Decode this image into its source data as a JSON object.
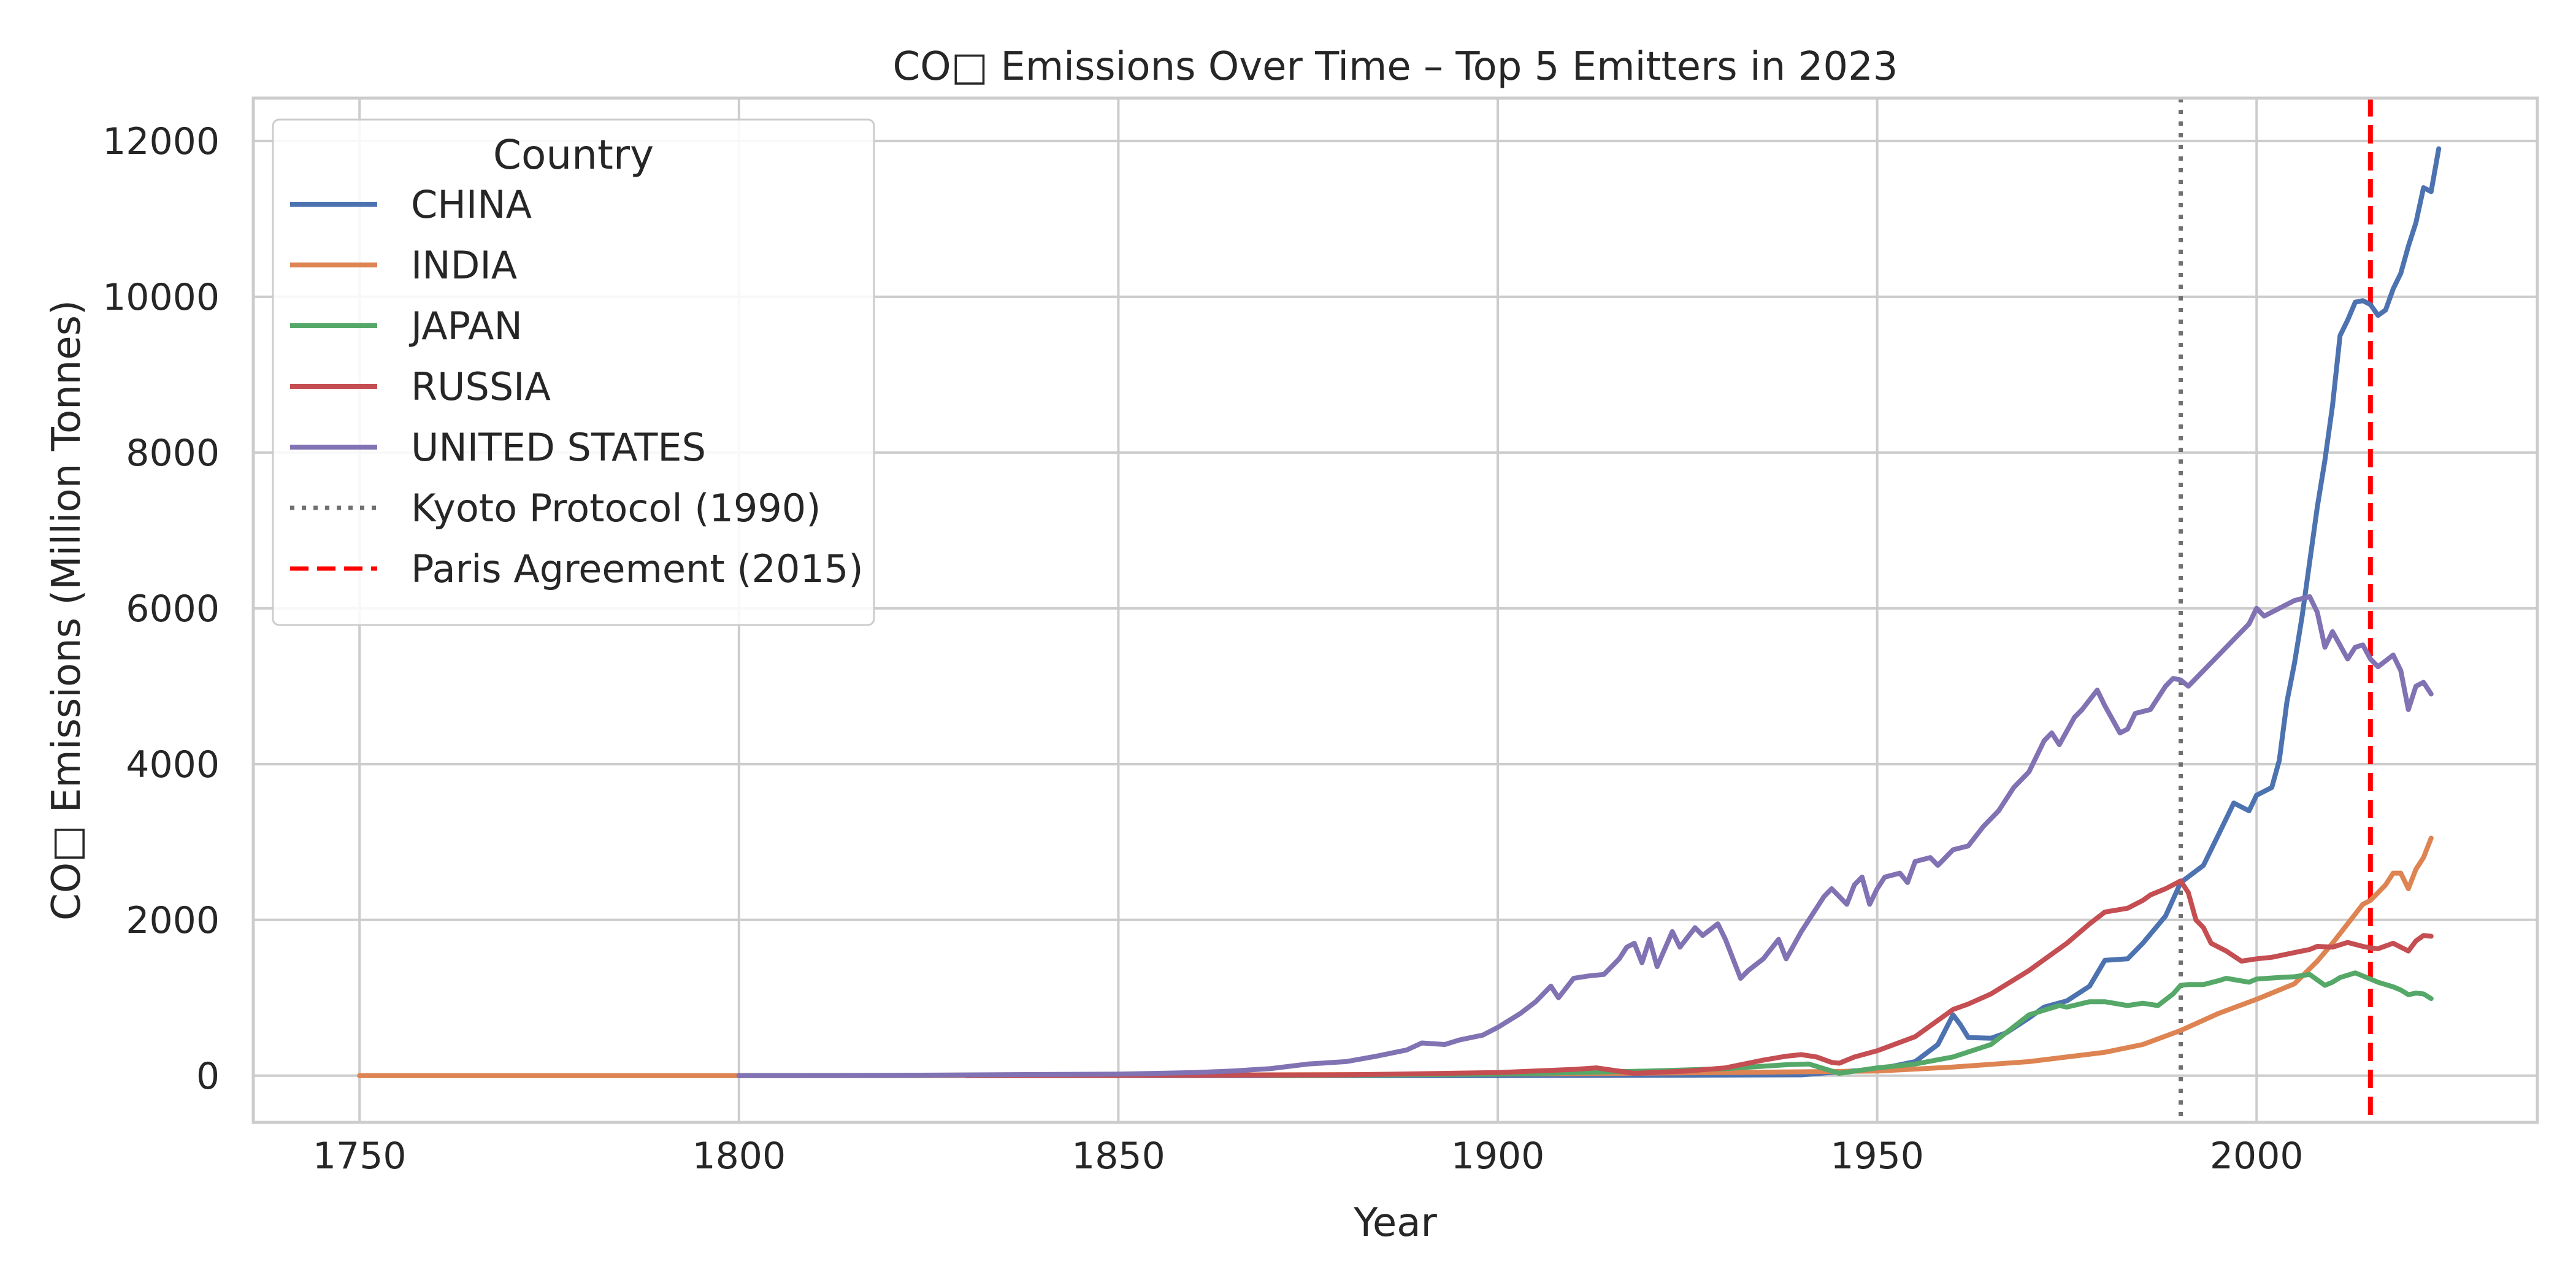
{
  "chart_data": {
    "type": "line",
    "title": "CO□ Emissions Over Time – Top 5 Emitters in 2023",
    "xlabel": "Year",
    "ylabel": "CO□ Emissions (Million Tonnes)",
    "xlim": [
      1736,
      2037
    ],
    "ylim": [
      -600,
      12550
    ],
    "x_ticks": [
      1750,
      1800,
      1850,
      1900,
      1950,
      2000
    ],
    "y_ticks": [
      0,
      2000,
      4000,
      6000,
      8000,
      10000,
      12000
    ],
    "grid": true,
    "legend": {
      "title": "Country",
      "position": "top-left"
    },
    "series": [
      {
        "name": "CHINA",
        "color": "#4c72b0",
        "points": [
          [
            1800,
            0
          ],
          [
            1900,
            0
          ],
          [
            1940,
            10
          ],
          [
            1945,
            50
          ],
          [
            1950,
            80
          ],
          [
            1955,
            180
          ],
          [
            1958,
            400
          ],
          [
            1960,
            780
          ],
          [
            1961,
            650
          ],
          [
            1962,
            490
          ],
          [
            1965,
            480
          ],
          [
            1967,
            550
          ],
          [
            1970,
            740
          ],
          [
            1972,
            880
          ],
          [
            1975,
            960
          ],
          [
            1978,
            1150
          ],
          [
            1980,
            1480
          ],
          [
            1983,
            1500
          ],
          [
            1985,
            1700
          ],
          [
            1988,
            2050
          ],
          [
            1990,
            2480
          ],
          [
            1993,
            2700
          ],
          [
            1995,
            3100
          ],
          [
            1997,
            3500
          ],
          [
            1999,
            3400
          ],
          [
            2000,
            3600
          ],
          [
            2002,
            3700
          ],
          [
            2003,
            4050
          ],
          [
            2004,
            4800
          ],
          [
            2005,
            5300
          ],
          [
            2006,
            5900
          ],
          [
            2008,
            7300
          ],
          [
            2009,
            7900
          ],
          [
            2010,
            8600
          ],
          [
            2011,
            9500
          ],
          [
            2012,
            9700
          ],
          [
            2013,
            9930
          ],
          [
            2014,
            9950
          ],
          [
            2015,
            9900
          ],
          [
            2016,
            9760
          ],
          [
            2017,
            9830
          ],
          [
            2018,
            10100
          ],
          [
            2019,
            10300
          ],
          [
            2020,
            10650
          ],
          [
            2021,
            10950
          ],
          [
            2022,
            11400
          ],
          [
            2023,
            11350
          ],
          [
            2024,
            11900
          ]
        ]
      },
      {
        "name": "INDIA",
        "color": "#dd8452",
        "points": [
          [
            1750,
            0
          ],
          [
            1800,
            0
          ],
          [
            1850,
            5
          ],
          [
            1900,
            20
          ],
          [
            1930,
            40
          ],
          [
            1950,
            60
          ],
          [
            1960,
            110
          ],
          [
            1970,
            180
          ],
          [
            1980,
            300
          ],
          [
            1985,
            400
          ],
          [
            1990,
            580
          ],
          [
            1995,
            800
          ],
          [
            2000,
            980
          ],
          [
            2005,
            1180
          ],
          [
            2008,
            1470
          ],
          [
            2010,
            1700
          ],
          [
            2012,
            1950
          ],
          [
            2014,
            2200
          ],
          [
            2015,
            2250
          ],
          [
            2016,
            2350
          ],
          [
            2017,
            2450
          ],
          [
            2018,
            2600
          ],
          [
            2019,
            2600
          ],
          [
            2020,
            2400
          ],
          [
            2021,
            2650
          ],
          [
            2022,
            2800
          ],
          [
            2023,
            3050
          ]
        ]
      },
      {
        "name": "JAPAN",
        "color": "#55a868",
        "points": [
          [
            1870,
            0
          ],
          [
            1900,
            20
          ],
          [
            1920,
            60
          ],
          [
            1930,
            90
          ],
          [
            1938,
            140
          ],
          [
            1941,
            150
          ],
          [
            1945,
            30
          ],
          [
            1950,
            100
          ],
          [
            1955,
            150
          ],
          [
            1960,
            240
          ],
          [
            1965,
            400
          ],
          [
            1970,
            780
          ],
          [
            1972,
            840
          ],
          [
            1974,
            900
          ],
          [
            1975,
            880
          ],
          [
            1978,
            950
          ],
          [
            1980,
            950
          ],
          [
            1983,
            900
          ],
          [
            1985,
            930
          ],
          [
            1987,
            900
          ],
          [
            1989,
            1050
          ],
          [
            1990,
            1160
          ],
          [
            1991,
            1170
          ],
          [
            1993,
            1170
          ],
          [
            1995,
            1220
          ],
          [
            1996,
            1250
          ],
          [
            1999,
            1200
          ],
          [
            2000,
            1240
          ],
          [
            2003,
            1260
          ],
          [
            2005,
            1270
          ],
          [
            2007,
            1300
          ],
          [
            2009,
            1160
          ],
          [
            2010,
            1200
          ],
          [
            2011,
            1260
          ],
          [
            2013,
            1320
          ],
          [
            2014,
            1280
          ],
          [
            2016,
            1200
          ],
          [
            2018,
            1140
          ],
          [
            2019,
            1100
          ],
          [
            2020,
            1040
          ],
          [
            2021,
            1060
          ],
          [
            2022,
            1050
          ],
          [
            2023,
            990
          ]
        ]
      },
      {
        "name": "RUSSIA",
        "color": "#c44e52",
        "points": [
          [
            1830,
            0
          ],
          [
            1880,
            10
          ],
          [
            1900,
            40
          ],
          [
            1910,
            80
          ],
          [
            1913,
            100
          ],
          [
            1918,
            30
          ],
          [
            1925,
            60
          ],
          [
            1930,
            100
          ],
          [
            1935,
            200
          ],
          [
            1938,
            250
          ],
          [
            1940,
            270
          ],
          [
            1942,
            240
          ],
          [
            1944,
            170
          ],
          [
            1945,
            160
          ],
          [
            1947,
            240
          ],
          [
            1950,
            320
          ],
          [
            1955,
            500
          ],
          [
            1960,
            850
          ],
          [
            1962,
            920
          ],
          [
            1965,
            1050
          ],
          [
            1970,
            1350
          ],
          [
            1975,
            1700
          ],
          [
            1978,
            1950
          ],
          [
            1980,
            2100
          ],
          [
            1983,
            2150
          ],
          [
            1985,
            2250
          ],
          [
            1986,
            2320
          ],
          [
            1988,
            2400
          ],
          [
            1989,
            2450
          ],
          [
            1990,
            2500
          ],
          [
            1991,
            2350
          ],
          [
            1992,
            2000
          ],
          [
            1993,
            1900
          ],
          [
            1994,
            1700
          ],
          [
            1996,
            1600
          ],
          [
            1998,
            1470
          ],
          [
            2000,
            1500
          ],
          [
            2002,
            1520
          ],
          [
            2005,
            1580
          ],
          [
            2007,
            1620
          ],
          [
            2008,
            1660
          ],
          [
            2010,
            1650
          ],
          [
            2012,
            1710
          ],
          [
            2014,
            1660
          ],
          [
            2015,
            1640
          ],
          [
            2016,
            1630
          ],
          [
            2018,
            1700
          ],
          [
            2020,
            1600
          ],
          [
            2021,
            1730
          ],
          [
            2022,
            1800
          ],
          [
            2023,
            1790
          ]
        ]
      },
      {
        "name": "UNITED STATES",
        "color": "#8172b3",
        "points": [
          [
            1800,
            0
          ],
          [
            1820,
            5
          ],
          [
            1840,
            15
          ],
          [
            1850,
            20
          ],
          [
            1860,
            40
          ],
          [
            1865,
            60
          ],
          [
            1870,
            90
          ],
          [
            1875,
            150
          ],
          [
            1880,
            180
          ],
          [
            1884,
            250
          ],
          [
            1888,
            330
          ],
          [
            1890,
            420
          ],
          [
            1893,
            400
          ],
          [
            1895,
            460
          ],
          [
            1898,
            520
          ],
          [
            1900,
            620
          ],
          [
            1903,
            800
          ],
          [
            1905,
            950
          ],
          [
            1907,
            1150
          ],
          [
            1908,
            1000
          ],
          [
            1910,
            1250
          ],
          [
            1912,
            1280
          ],
          [
            1914,
            1300
          ],
          [
            1916,
            1500
          ],
          [
            1917,
            1650
          ],
          [
            1918,
            1700
          ],
          [
            1919,
            1450
          ],
          [
            1920,
            1750
          ],
          [
            1921,
            1400
          ],
          [
            1923,
            1850
          ],
          [
            1924,
            1650
          ],
          [
            1926,
            1900
          ],
          [
            1927,
            1800
          ],
          [
            1929,
            1950
          ],
          [
            1930,
            1750
          ],
          [
            1932,
            1250
          ],
          [
            1933,
            1350
          ],
          [
            1935,
            1500
          ],
          [
            1937,
            1750
          ],
          [
            1938,
            1500
          ],
          [
            1940,
            1850
          ],
          [
            1941,
            2000
          ],
          [
            1943,
            2300
          ],
          [
            1944,
            2400
          ],
          [
            1945,
            2300
          ],
          [
            1946,
            2200
          ],
          [
            1947,
            2450
          ],
          [
            1948,
            2550
          ],
          [
            1949,
            2200
          ],
          [
            1950,
            2400
          ],
          [
            1951,
            2550
          ],
          [
            1953,
            2600
          ],
          [
            1954,
            2480
          ],
          [
            1955,
            2750
          ],
          [
            1957,
            2800
          ],
          [
            1958,
            2700
          ],
          [
            1960,
            2900
          ],
          [
            1962,
            2950
          ],
          [
            1964,
            3200
          ],
          [
            1966,
            3400
          ],
          [
            1968,
            3700
          ],
          [
            1970,
            3900
          ],
          [
            1972,
            4300
          ],
          [
            1973,
            4400
          ],
          [
            1974,
            4250
          ],
          [
            1976,
            4600
          ],
          [
            1977,
            4700
          ],
          [
            1979,
            4950
          ],
          [
            1980,
            4750
          ],
          [
            1982,
            4400
          ],
          [
            1983,
            4450
          ],
          [
            1984,
            4650
          ],
          [
            1986,
            4700
          ],
          [
            1988,
            5000
          ],
          [
            1989,
            5100
          ],
          [
            1990,
            5080
          ],
          [
            1991,
            5000
          ],
          [
            1993,
            5200
          ],
          [
            1995,
            5400
          ],
          [
            1997,
            5600
          ],
          [
            1999,
            5800
          ],
          [
            2000,
            6000
          ],
          [
            2001,
            5900
          ],
          [
            2003,
            6000
          ],
          [
            2005,
            6100
          ],
          [
            2007,
            6150
          ],
          [
            2008,
            5950
          ],
          [
            2009,
            5500
          ],
          [
            2010,
            5700
          ],
          [
            2012,
            5350
          ],
          [
            2013,
            5500
          ],
          [
            2014,
            5530
          ],
          [
            2015,
            5350
          ],
          [
            2016,
            5250
          ],
          [
            2018,
            5400
          ],
          [
            2019,
            5200
          ],
          [
            2020,
            4700
          ],
          [
            2021,
            5000
          ],
          [
            2022,
            5050
          ],
          [
            2023,
            4900
          ]
        ]
      }
    ],
    "reference_lines": [
      {
        "name": "Kyoto Protocol (1990)",
        "x": 1990,
        "color": "#707070",
        "style": "dotted"
      },
      {
        "name": "Paris Agreement (2015)",
        "x": 2015,
        "color": "#ff0000",
        "style": "dashed"
      }
    ]
  }
}
